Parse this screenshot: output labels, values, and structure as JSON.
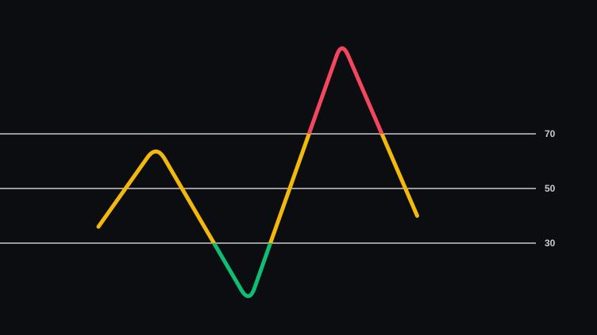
{
  "chart_data": {
    "type": "line",
    "title": "",
    "xlabel": "",
    "ylabel": "",
    "x": [
      0,
      1,
      2.6,
      4.2,
      5.5
    ],
    "xlim": [
      -1.7,
      7.6
    ],
    "ylim": [
      -8,
      116
    ],
    "series": [
      {
        "values": [
          36,
          66,
          8,
          104,
          40
        ]
      }
    ],
    "reference_lines": [
      {
        "value": 70,
        "label": "70"
      },
      {
        "value": 50,
        "label": "50"
      },
      {
        "value": 30,
        "label": "30"
      }
    ],
    "zones": {
      "above": {
        "threshold": 70,
        "color": "#f4475f"
      },
      "middle": {
        "color": "#f2b90b"
      },
      "below": {
        "threshold": 30,
        "color": "#0cbf72"
      }
    },
    "reference_line_color": "#c9cacd",
    "background": "#0c0d11",
    "grid": false,
    "legend": "none"
  }
}
